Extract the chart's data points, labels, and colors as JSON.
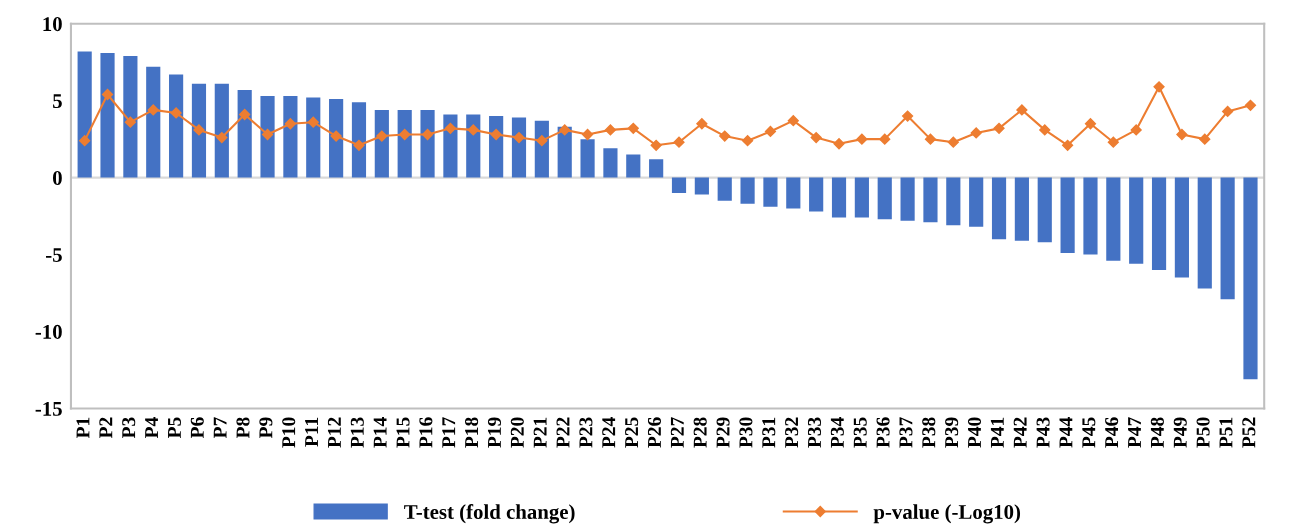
{
  "chart_data": {
    "type": "bar",
    "categories": [
      "P1",
      "P2",
      "P3",
      "P4",
      "P5",
      "P6",
      "P7",
      "P8",
      "P9",
      "P10",
      "P11",
      "P12",
      "P13",
      "P14",
      "P15",
      "P16",
      "P17",
      "P18",
      "P19",
      "P20",
      "P21",
      "P22",
      "P23",
      "P24",
      "P25",
      "P26",
      "P27",
      "P28",
      "P29",
      "P30",
      "P31",
      "P32",
      "P33",
      "P34",
      "P35",
      "P36",
      "P37",
      "P38",
      "P39",
      "P40",
      "P41",
      "P42",
      "P43",
      "P44",
      "P45",
      "P46",
      "P47",
      "P48",
      "P49",
      "P50",
      "P51",
      "P52"
    ],
    "series": [
      {
        "name": "T-test (fold change)",
        "color": "#4472c4",
        "values": [
          8.2,
          8.1,
          7.9,
          7.2,
          6.7,
          6.1,
          6.1,
          5.7,
          5.3,
          5.3,
          5.2,
          5.1,
          4.9,
          4.4,
          4.4,
          4.4,
          4.1,
          4.1,
          4.0,
          3.9,
          3.7,
          3.3,
          2.5,
          1.9,
          1.5,
          1.2,
          -1.0,
          -1.1,
          -1.5,
          -1.7,
          -1.9,
          -2.0,
          -2.2,
          -2.6,
          -2.6,
          -2.7,
          -2.8,
          -2.9,
          -3.1,
          -3.2,
          -4.0,
          -4.1,
          -4.2,
          -4.9,
          -5.0,
          -5.4,
          -5.6,
          -6.0,
          -6.5,
          -7.2,
          -7.9,
          -13.1
        ]
      },
      {
        "name": "p-value (-Log10)",
        "type": "line",
        "color": "#ed7d31",
        "marker": "diamond",
        "values": [
          2.4,
          5.4,
          3.6,
          4.4,
          4.2,
          3.1,
          2.6,
          4.1,
          2.8,
          3.5,
          3.6,
          2.7,
          2.1,
          2.7,
          2.8,
          2.8,
          3.2,
          3.1,
          2.8,
          2.6,
          2.4,
          3.1,
          2.8,
          3.1,
          3.2,
          2.1,
          2.3,
          3.5,
          2.7,
          2.4,
          3.0,
          3.7,
          2.6,
          2.2,
          2.5,
          2.5,
          4.0,
          2.5,
          2.3,
          2.9,
          3.2,
          4.4,
          3.1,
          2.1,
          3.5,
          2.3,
          3.1,
          5.9,
          2.8,
          2.5,
          4.3,
          4.7
        ]
      }
    ],
    "ylim": [
      -15,
      10
    ],
    "yticks": [
      -15,
      -10,
      -5,
      0,
      5,
      10
    ],
    "ref_lines": [
      {
        "axis": "y",
        "value": 0,
        "color": "#d9d9d9"
      }
    ],
    "grid": false,
    "legend": "bottom"
  }
}
